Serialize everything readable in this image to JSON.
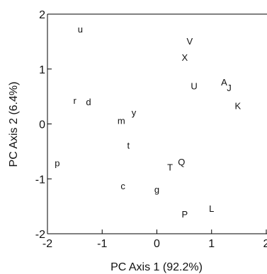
{
  "chart_data": {
    "type": "scatter",
    "title": "",
    "xlabel": "PC Axis 1 (92.2%)",
    "ylabel": "PC Axis 2 (6.4%)",
    "xlim": [
      -2,
      2
    ],
    "ylim": [
      -2,
      2
    ],
    "xticks": [
      -2,
      -1,
      0,
      1,
      2
    ],
    "yticks": [
      -2,
      -1,
      0,
      1,
      2
    ],
    "grid": false,
    "points": [
      {
        "label": "u",
        "x": -1.4,
        "y": 1.72
      },
      {
        "label": "V",
        "x": 0.6,
        "y": 1.5
      },
      {
        "label": "X",
        "x": 0.51,
        "y": 1.2
      },
      {
        "label": "A",
        "x": 1.23,
        "y": 0.75
      },
      {
        "label": "J",
        "x": 1.32,
        "y": 0.65
      },
      {
        "label": "U",
        "x": 0.68,
        "y": 0.68
      },
      {
        "label": "K",
        "x": 1.48,
        "y": 0.32
      },
      {
        "label": "r",
        "x": -1.5,
        "y": 0.42
      },
      {
        "label": "d",
        "x": -1.25,
        "y": 0.39
      },
      {
        "label": "y",
        "x": -0.42,
        "y": 0.2
      },
      {
        "label": "m",
        "x": -0.65,
        "y": 0.05
      },
      {
        "label": "t",
        "x": -0.52,
        "y": -0.4
      },
      {
        "label": "p",
        "x": -1.82,
        "y": -0.72
      },
      {
        "label": "Q",
        "x": 0.45,
        "y": -0.7
      },
      {
        "label": "T",
        "x": 0.24,
        "y": -0.8
      },
      {
        "label": "c",
        "x": -0.62,
        "y": -1.14
      },
      {
        "label": "g",
        "x": 0.0,
        "y": -1.2
      },
      {
        "label": "L",
        "x": 1.0,
        "y": -1.55
      },
      {
        "label": "P",
        "x": 0.51,
        "y": -1.65
      }
    ]
  }
}
